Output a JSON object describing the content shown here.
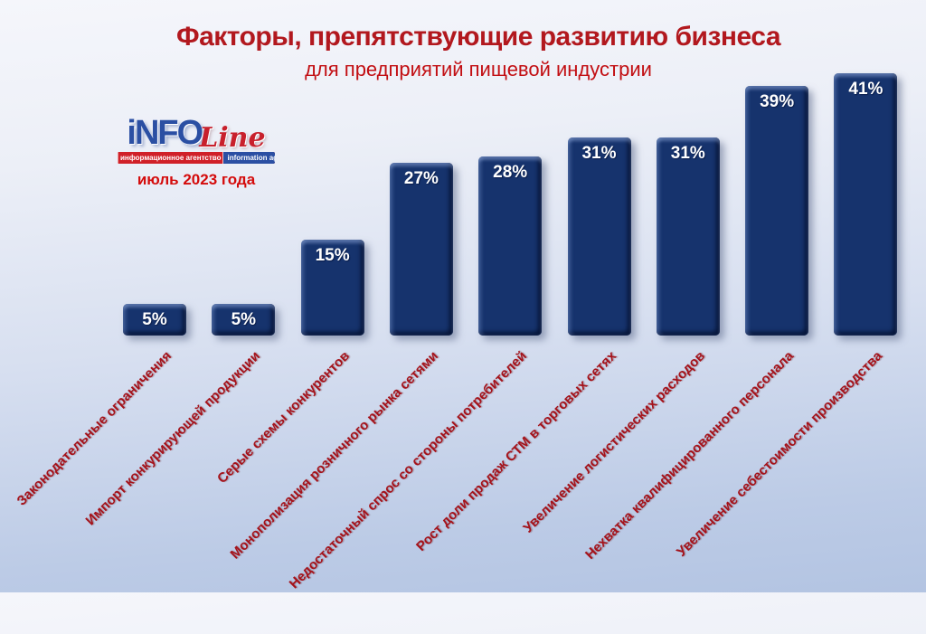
{
  "header": {
    "title": "Факторы, препятствующие развитию бизнеса",
    "subtitle": "для предприятий пищевой индустрии"
  },
  "logo": {
    "brand_part1": "iNFO",
    "brand_part2": "Line",
    "tagline_ru": "информационное агентство",
    "tagline_en": "information agency",
    "date": "июль 2023 года"
  },
  "colors": {
    "title_red": "#b2181e",
    "subtitle_red": "#c20f13",
    "category_label_red": "#a5121a",
    "bar_navy": "#16336d",
    "value_label_white": "#ffffff",
    "logo_blue": "#2b4fa3",
    "logo_red": "#c8202c",
    "background_top": "#f5f6fb",
    "background_bottom": "#b3c4e2"
  },
  "chart_data": {
    "type": "bar",
    "title": "Факторы, препятствующие развитию бизнеса",
    "subtitle": "для предприятий пищевой индустрии",
    "categories": [
      "Законодательные ограничения",
      "Импорт конкурирующей продукции",
      "Серые схемы конкурентов",
      "Монополизация розничного рынка сетями",
      "Недостаточный спрос со стороны потребителей",
      "Рост доли продаж СТМ в торговых сетях",
      "Увеличение логистических расходов",
      "Нехватка квалифицированного персонала",
      "Увеличение себестоимости производства"
    ],
    "values": [
      5,
      5,
      15,
      27,
      28,
      31,
      31,
      39,
      41
    ],
    "value_suffix": "%",
    "ylim": [
      0,
      45
    ],
    "grid": false,
    "legend": false,
    "bar_color": "#16336d",
    "category_label_angle_deg": -45,
    "source_note": "INFOLine, июль 2023 года"
  }
}
